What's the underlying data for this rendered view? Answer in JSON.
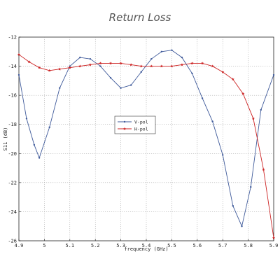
{
  "chart_data": {
    "type": "line",
    "title": "Return Loss",
    "xlabel": "frequency (GHz)",
    "ylabel": "S11 (dB)",
    "xlim": [
      4.9,
      5.9
    ],
    "ylim": [
      -26,
      -12
    ],
    "xticks": [
      "4.9",
      "5",
      "5.1",
      "5.2",
      "5.3",
      "5.4",
      "5.5",
      "5.6",
      "5.7",
      "5.8",
      "5.9"
    ],
    "yticks": [
      "-26",
      "-24",
      "-22",
      "-20",
      "-18",
      "-16",
      "-14",
      "-12"
    ],
    "grid": true,
    "legend_position": "center-left",
    "series": [
      {
        "name": "V-pol",
        "color": "#3f5a9a",
        "marker": "dot",
        "x": [
          4.9,
          4.93,
          4.96,
          4.98,
          5.02,
          5.06,
          5.1,
          5.14,
          5.18,
          5.22,
          5.26,
          5.3,
          5.34,
          5.38,
          5.42,
          5.46,
          5.5,
          5.54,
          5.58,
          5.62,
          5.66,
          5.7,
          5.74,
          5.775,
          5.81,
          5.85,
          5.9
        ],
        "y": [
          -14.6,
          -17.6,
          -19.4,
          -20.3,
          -18.2,
          -15.5,
          -14.0,
          -13.4,
          -13.5,
          -14.0,
          -14.8,
          -15.5,
          -15.3,
          -14.4,
          -13.5,
          -13.0,
          -12.9,
          -13.4,
          -14.5,
          -16.2,
          -17.8,
          -20.1,
          -23.6,
          -25.0,
          -22.3,
          -17.0,
          -14.6
        ]
      },
      {
        "name": "H-pol",
        "color": "#cc2222",
        "marker": "star",
        "x": [
          4.9,
          4.94,
          4.98,
          5.02,
          5.06,
          5.1,
          5.14,
          5.18,
          5.22,
          5.26,
          5.3,
          5.34,
          5.38,
          5.42,
          5.46,
          5.5,
          5.54,
          5.58,
          5.62,
          5.66,
          5.7,
          5.74,
          5.78,
          5.82,
          5.86,
          5.9
        ],
        "y": [
          -13.2,
          -13.7,
          -14.1,
          -14.3,
          -14.2,
          -14.1,
          -14.0,
          -13.9,
          -13.8,
          -13.8,
          -13.8,
          -13.9,
          -14.0,
          -14.0,
          -14.0,
          -14.0,
          -13.9,
          -13.8,
          -13.8,
          -14.0,
          -14.4,
          -14.9,
          -15.9,
          -17.6,
          -21.1,
          -25.8
        ]
      }
    ]
  }
}
